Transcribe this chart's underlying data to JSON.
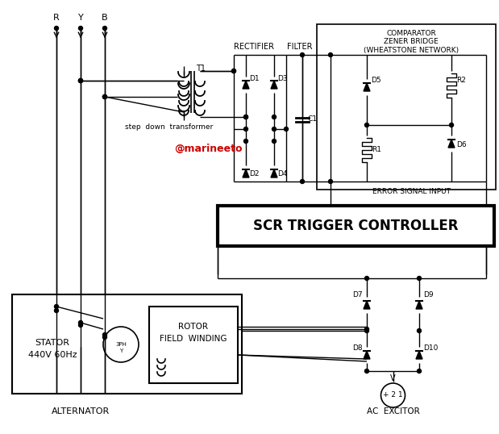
{
  "bg_color": "#ffffff",
  "line_color": "#000000",
  "red_text_color": "#cc0000",
  "labels": {
    "R": "R",
    "Y": "Y",
    "B": "B",
    "T1": "T1",
    "step_down": "step  down  transformer",
    "RECTIFIER": "RECTIFIER",
    "FILTER": "FILTER",
    "COMPARATOR_L1": "COMPARATOR",
    "COMPARATOR_L2": "ZENER BRIDGE",
    "COMPARATOR_L3": "(WHEATSTONE NETWORK)",
    "D1": "D1",
    "D2": "D2",
    "D3": "D3",
    "D4": "D4",
    "D5": "D5",
    "D6": "D6",
    "D7": "D7",
    "D8": "D8",
    "D9": "D9",
    "D10": "D10",
    "C1": "C1",
    "R1": "R1",
    "R2": "R2",
    "ERROR": "ERROR SIGNAL INPUT",
    "SCR": "SCR TRIGGER CONTROLLER",
    "STATOR_L1": "STATOR",
    "STATOR_L2": "440V 60Hz",
    "ROTOR_L1": "ROTOR",
    "ROTOR_L2": "FIELD  WINDING",
    "ALTERNATOR": "ALTERNATOR",
    "AC_EXCITOR": "AC EXCITOR",
    "V": "V",
    "watermark": "@marineeto"
  }
}
